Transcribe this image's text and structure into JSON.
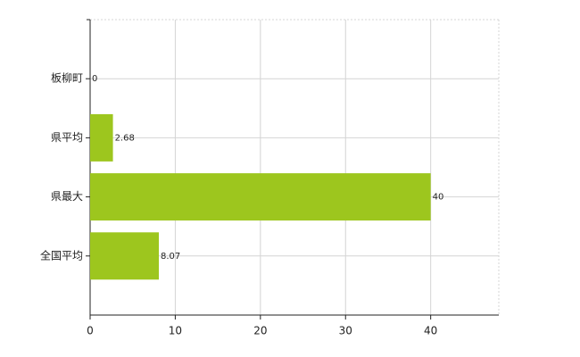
{
  "chart_data": {
    "type": "bar",
    "orientation": "horizontal",
    "categories": [
      "板柳町",
      "県平均",
      "県最大",
      "全国平均"
    ],
    "values": [
      0,
      2.68,
      40,
      8.07
    ],
    "color": "#9dc61e",
    "xlim": [
      0,
      48
    ],
    "xticks": [
      0,
      10,
      20,
      30,
      40
    ],
    "grid": true
  }
}
